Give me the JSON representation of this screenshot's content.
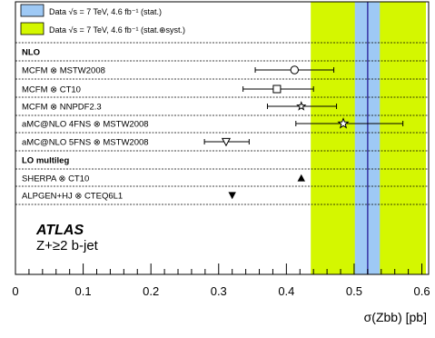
{
  "chart_data": {
    "type": "scatter",
    "orientation": "horizontal",
    "xlabel": "σ(Zbb) [pb]",
    "xlim": [
      0,
      0.61
    ],
    "x_ticks": [
      0,
      0.1,
      0.2,
      0.3,
      0.4,
      0.5,
      0.6
    ],
    "x_tick_labels": [
      "0",
      "0.1",
      "0.2",
      "0.3",
      "0.4",
      "0.5",
      "0.6"
    ],
    "grid": false,
    "legend_position": "top-left",
    "measurement": {
      "central": 0.52,
      "stat_band": [
        0.501,
        0.538
      ],
      "total_band": [
        0.436,
        0.606
      ],
      "stat_color": "#9ec9f5",
      "total_color": "#d4f700",
      "line_color": "#3b3ba8"
    },
    "legend": [
      {
        "label": "Data √s = 7 TeV, 4.6 fb⁻¹ (stat.)",
        "color": "#9ec9f5"
      },
      {
        "label": "Data √s = 7 TeV, 4.6 fb⁻¹ (stat.⊕syst.)",
        "color": "#d4f700"
      }
    ],
    "rows": [
      {
        "kind": "header",
        "label": "NLO"
      },
      {
        "kind": "point",
        "label": "MCFM ⊗ MSTW2008",
        "x": 0.412,
        "xerr_low": 0.058,
        "xerr_high": 0.058,
        "marker": "circle"
      },
      {
        "kind": "point",
        "label": "MCFM ⊗ CT10",
        "x": 0.386,
        "xerr_low": 0.05,
        "xerr_high": 0.054,
        "marker": "square"
      },
      {
        "kind": "point",
        "label": "MCFM ⊗ NNPDF2.3",
        "x": 0.422,
        "xerr_low": 0.05,
        "xerr_high": 0.052,
        "marker": "star"
      },
      {
        "kind": "point",
        "label": "aMC@NLO 4FNS ⊗ MSTW2008",
        "x": 0.484,
        "xerr_low": 0.07,
        "xerr_high": 0.088,
        "marker": "open-star"
      },
      {
        "kind": "point",
        "label": "aMC@NLO 5FNS ⊗ MSTW2008",
        "x": 0.311,
        "xerr_low": 0.032,
        "xerr_high": 0.034,
        "marker": "open-triangle-down"
      },
      {
        "kind": "header",
        "label": "LO multileg"
      },
      {
        "kind": "point",
        "label": "SHERPA ⊗ CT10",
        "x": 0.422,
        "marker": "triangle-up"
      },
      {
        "kind": "point",
        "label": "ALPGEN+HJ ⊗ CTEQ6L1",
        "x": 0.32,
        "marker": "triangle-down"
      }
    ],
    "annotation": {
      "experiment": "ATLAS",
      "selection": "Z+≥2 b-jet"
    }
  }
}
